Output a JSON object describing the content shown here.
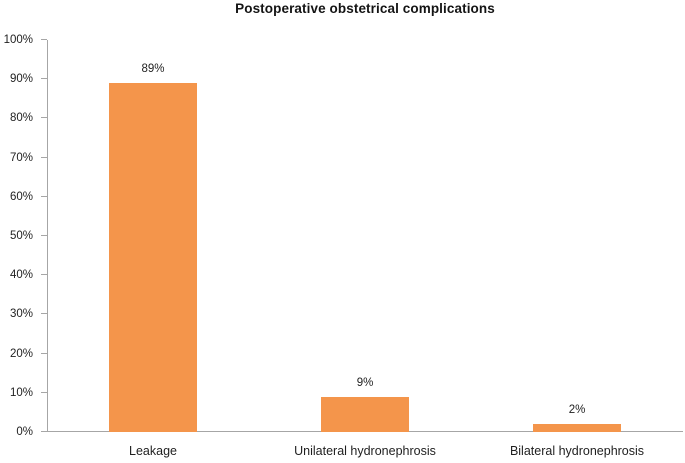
{
  "chart_data": {
    "type": "bar",
    "title": "Postoperative obstetrical complications",
    "categories": [
      "Leakage",
      "Unilateral hydronephrosis",
      "Bilateral hydronephrosis"
    ],
    "values": [
      89,
      9,
      2
    ],
    "data_labels": [
      "89%",
      "9%",
      "2%"
    ],
    "xlabel": "",
    "ylabel": "",
    "ylim": [
      0,
      100
    ],
    "ytick_step": 10,
    "ytick_labels": [
      "0%",
      "10%",
      "20%",
      "30%",
      "40%",
      "50%",
      "60%",
      "70%",
      "80%",
      "90%",
      "100%"
    ],
    "grid": false,
    "legend": "none",
    "colors": {
      "bar": "#F4954B",
      "axis": "#A6A6A6",
      "text": "#1F1F1F",
      "title": "#141414"
    }
  }
}
